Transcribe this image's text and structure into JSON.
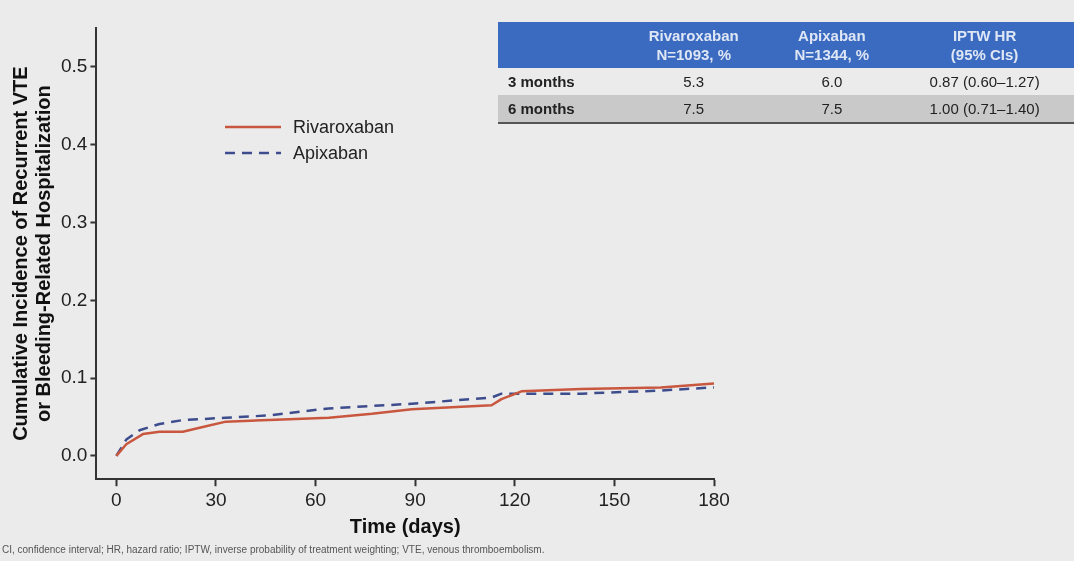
{
  "chart_data": {
    "type": "line",
    "xlabel": "Time (days)",
    "ylabel": "Cumulative Incidence of Recurrent VTE\nor Bleeding-Related Hospitalization",
    "xlim": [
      -6,
      180
    ],
    "xticks": [
      0,
      30,
      60,
      90,
      120,
      150,
      180
    ],
    "ylim": [
      -0.03,
      0.55
    ],
    "yticks": [
      {
        "value": 0,
        "label": "0.0"
      },
      0.1,
      0.2,
      0.3,
      0.4,
      0.5
    ],
    "grid": false,
    "legend": "top left",
    "marker": "none",
    "series": [
      {
        "name": "Rivaroxaban",
        "color": "#c9573f",
        "line_style": "solid",
        "x": [
          0,
          3,
          8,
          13,
          20,
          27,
          33,
          46,
          64,
          77,
          89,
          113,
          116,
          122,
          140,
          164,
          180
        ],
        "values": [
          0,
          0.015,
          0.028,
          0.031,
          0.031,
          0.038,
          0.044,
          0.046,
          0.049,
          0.054,
          0.06,
          0.065,
          0.073,
          0.083,
          0.086,
          0.088,
          0.093
        ]
      },
      {
        "name": "Apixaban",
        "color": "#3d4c8c",
        "line_style": "dashed",
        "x": [
          0,
          3,
          7,
          13,
          20,
          33,
          46,
          64,
          89,
          113,
          116,
          122,
          140,
          164,
          180
        ],
        "values": [
          0,
          0.021,
          0.033,
          0.041,
          0.046,
          0.049,
          0.052,
          0.061,
          0.067,
          0.075,
          0.08,
          0.08,
          0.08,
          0.084,
          0.088
        ]
      }
    ],
    "annotations": [
      "Rivaroxaban\nN=1093, %",
      "Apixaban\nN=1344, %",
      "IPTW HR\n(95% CIs)",
      "3 months",
      "5.3",
      "6.0",
      "0.87 (0.60–1.27)",
      "6 months",
      "7.5",
      "7.5",
      "1.00 (0.71–1.40)",
      "CI, confidence interval; HR, hazard ratio; IPTW, inverse probability of treatment weighting; VTE, venous thromboembolism."
    ]
  }
}
